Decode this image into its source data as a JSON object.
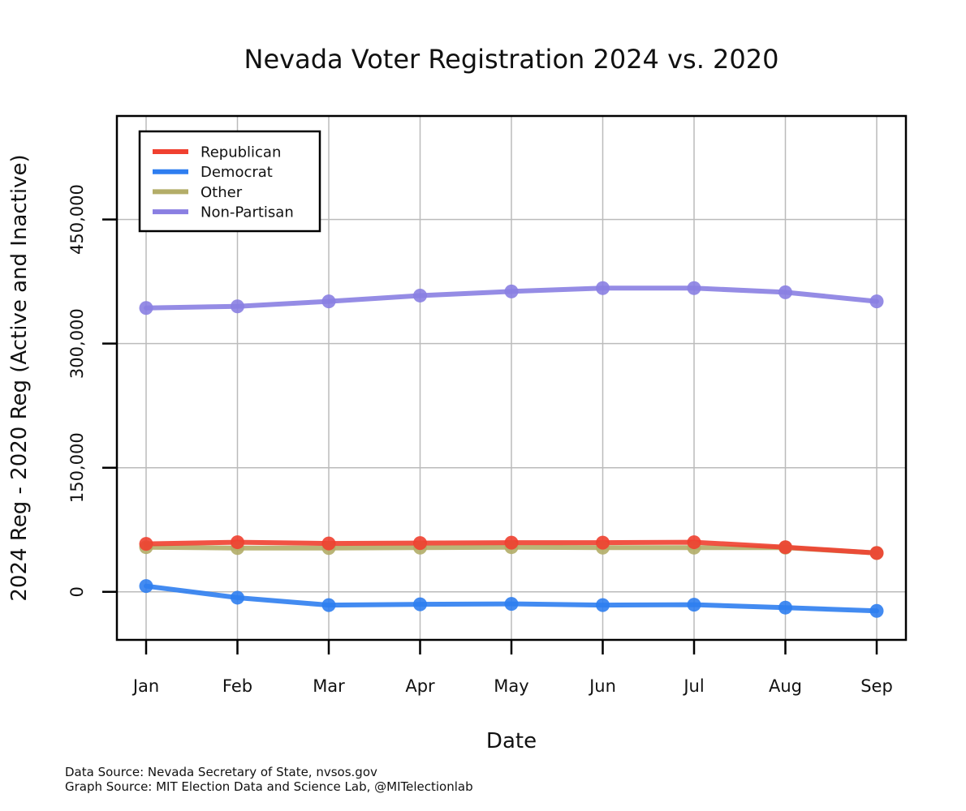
{
  "chart_data": {
    "type": "line",
    "title": "Nevada Voter Registration 2024 vs. 2020",
    "xlabel": "Date",
    "ylabel": "2024 Reg - 2020 Reg (Active and Inactive)",
    "categories": [
      "Jan",
      "Feb",
      "Mar",
      "Apr",
      "May",
      "Jun",
      "Jul",
      "Aug",
      "Sep"
    ],
    "y_ticks": [
      0,
      150000,
      300000,
      450000
    ],
    "y_tick_labels": [
      "0",
      "150,000",
      "300,000",
      "450,000"
    ],
    "ylim": [
      -58000,
      575000
    ],
    "grid": true,
    "legend_position": "top-left",
    "series": [
      {
        "name": "Republican",
        "color": "#f04030",
        "values": [
          58000,
          60000,
          58500,
          59000,
          59500,
          59500,
          60000,
          54000,
          47000
        ]
      },
      {
        "name": "Democrat",
        "color": "#2f7ef0",
        "values": [
          7000,
          -7000,
          -16000,
          -15000,
          -14500,
          -16000,
          -15500,
          -19000,
          -23000
        ]
      },
      {
        "name": "Other",
        "color": "#b3ad68",
        "values": [
          54000,
          53000,
          53000,
          53500,
          54000,
          53500,
          53500,
          53500,
          47000
        ]
      },
      {
        "name": "Non-Partisan",
        "color": "#8a7fe2",
        "values": [
          343000,
          345000,
          351000,
          358000,
          363000,
          367000,
          367000,
          362000,
          351000
        ]
      }
    ]
  },
  "footer": {
    "data_source": "Data Source: Nevada Secretary of State, nvsos.gov",
    "graph_source": "Graph Source: MIT Election Data and Science Lab, @MITelectionlab"
  }
}
